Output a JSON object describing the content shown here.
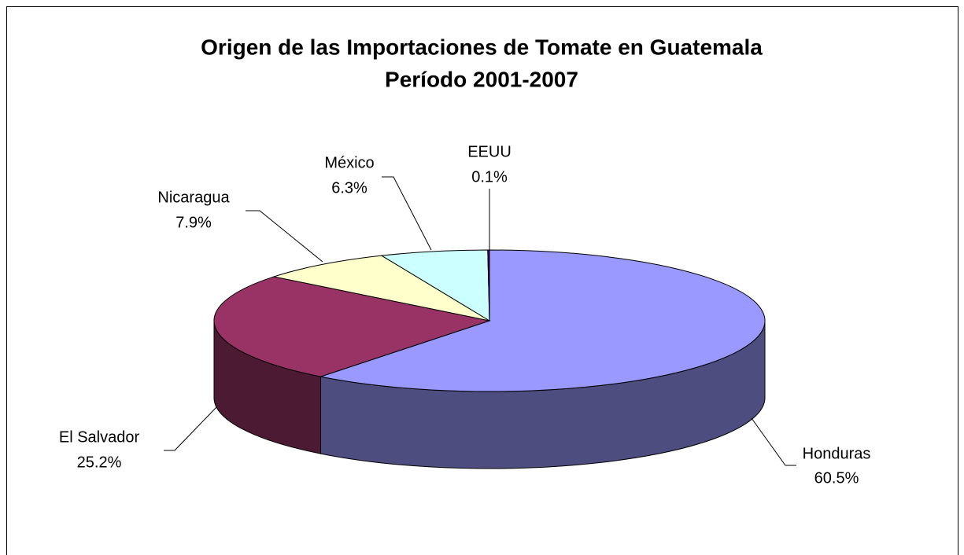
{
  "chart_data": {
    "type": "pie",
    "title": "Origen de las Importaciones de Tomate en Guatemala",
    "subtitle": "Período 2001-2007",
    "categories": [
      "Honduras",
      "El Salvador",
      "Nicaragua",
      "México",
      "EEUU"
    ],
    "values": [
      60.5,
      25.2,
      7.9,
      6.3,
      0.1
    ],
    "value_labels": [
      "60.5%",
      "25.2%",
      "7.9%",
      "6.3%",
      "0.1%"
    ],
    "colors": [
      "#9999ff",
      "#993366",
      "#ffffcc",
      "#ccffff",
      "#660066"
    ]
  }
}
